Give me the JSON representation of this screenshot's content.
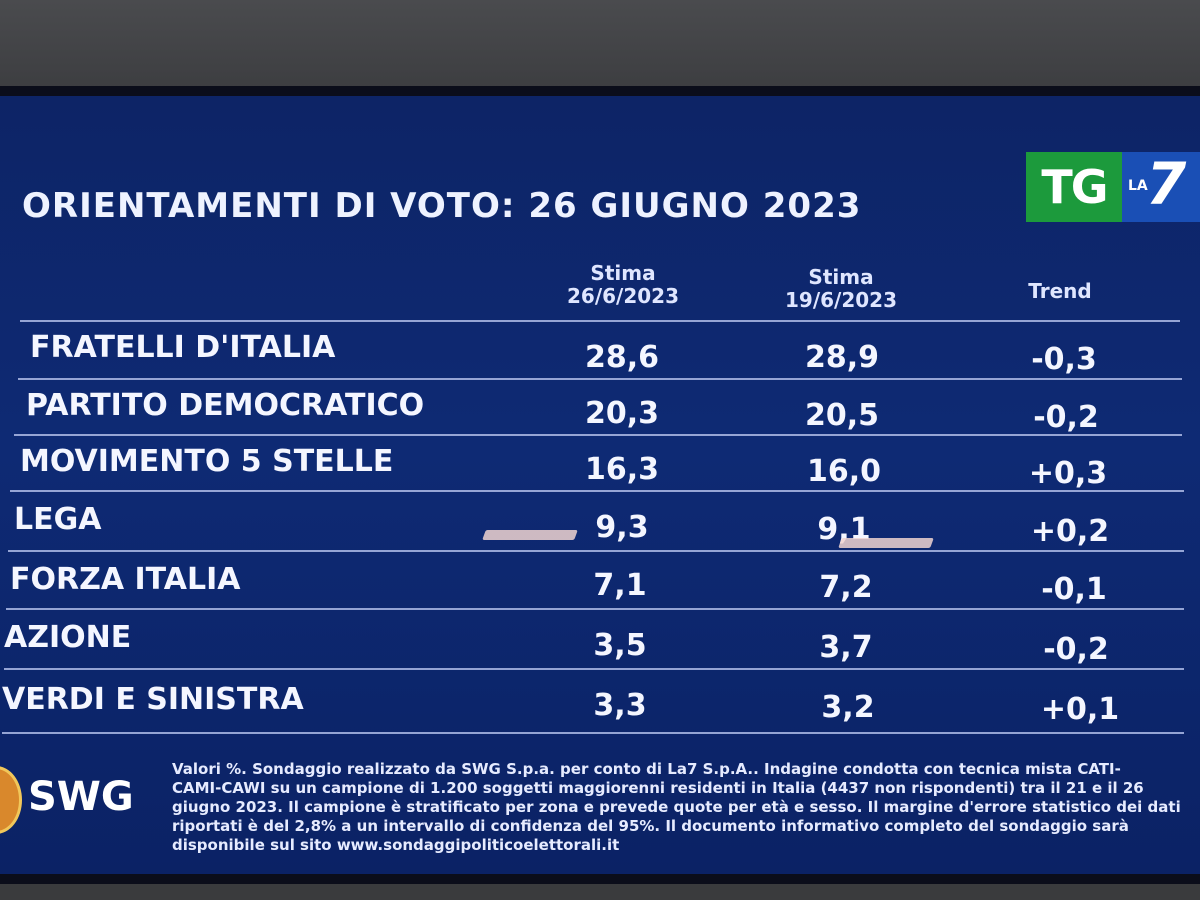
{
  "title": "ORIENTAMENTI DI VOTO: 26 GIUGNO 2023",
  "logo": {
    "tg": "TG",
    "la": "LA",
    "seven": "7"
  },
  "columns": {
    "current": [
      "Stima",
      "26/6/2023"
    ],
    "previous": [
      "Stima",
      "19/6/2023"
    ],
    "trend": "Trend"
  },
  "rows": [
    {
      "party": "FRATELLI D'ITALIA",
      "current": "28,6",
      "previous": "28,9",
      "trend": "-0,3"
    },
    {
      "party": "PARTITO DEMOCRATICO",
      "current": "20,3",
      "previous": "20,5",
      "trend": "-0,2"
    },
    {
      "party": "MOVIMENTO 5 STELLE",
      "current": "16,3",
      "previous": "16,0",
      "trend": "+0,3"
    },
    {
      "party": "LEGA",
      "current": "9,3",
      "previous": "9,1",
      "trend": "+0,2"
    },
    {
      "party": "FORZA ITALIA",
      "current": "7,1",
      "previous": "7,2",
      "trend": "-0,1"
    },
    {
      "party": "AZIONE",
      "current": "3,5",
      "previous": "3,7",
      "trend": "-0,2"
    },
    {
      "party": "VERDI E SINISTRA",
      "current": "3,3",
      "previous": "3,2",
      "trend": "+0,1"
    }
  ],
  "swg": "SWG",
  "footnote": [
    "Valori %. Sondaggio realizzato da SWG S.p.a. per conto di La7 S.p.A.. Indagine condotta con tecnica mista CATI-",
    "CAMI-CAWI su un campione di 1.200 soggetti maggiorenni residenti in Italia (4437 non rispondenti) tra il 21 e il 26",
    "giugno 2023. Il campione è stratificato per zona e prevede quote per età e sesso. Il margine d'errore statistico dei dati",
    "riportati è del 2,8% a un intervallo di confidenza del 95%. Il documento informativo completo del sondaggio sarà",
    "disponibile sul sito www.sondaggipoliticoelettorali.it"
  ]
}
